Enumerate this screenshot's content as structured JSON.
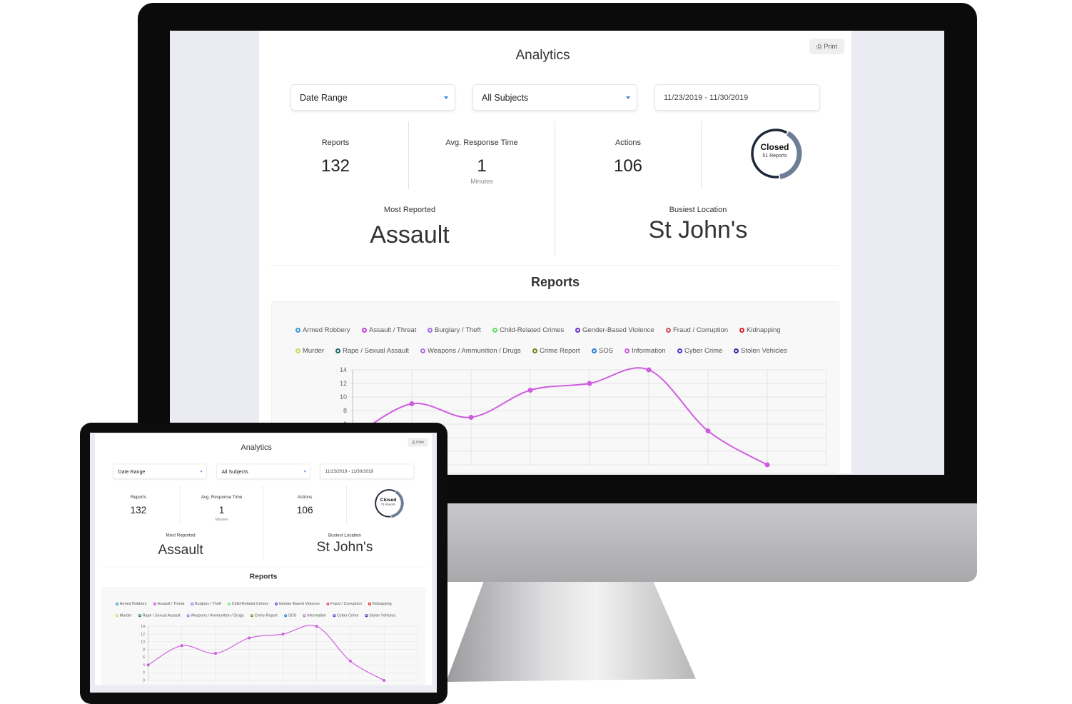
{
  "dashboard": {
    "title": "Analytics",
    "print_label": "Print",
    "print_icon": "printer-icon",
    "date_range_select": "Date Range",
    "subject_select": "All Subjects",
    "date_input": "11/23/2019 - 11/30/2019",
    "stats": {
      "reports_label": "Reports",
      "reports_value": "132",
      "response_label": "Avg. Response Time",
      "response_value": "1",
      "response_unit": "Minutes",
      "actions_label": "Actions",
      "actions_value": "106"
    },
    "donut": {
      "title": "Closed",
      "subtitle": "51 Reports",
      "closed": 51,
      "total": 132,
      "colors": {
        "ring": "#1e2838",
        "closed": "#6d7d96"
      }
    },
    "most_reported_label": "Most Reported",
    "most_reported_value": "Assault",
    "busiest_location_label": "Busiest Location",
    "busiest_location_value": "St John's",
    "reports_title": "Reports"
  },
  "chart_data": {
    "type": "line",
    "legend_placement": "top",
    "legend": [
      {
        "name": "Armed Robbery",
        "color": "#3a9ad9"
      },
      {
        "name": "Assault / Threat",
        "color": "#c63ee0"
      },
      {
        "name": "Burglary / Theft",
        "color": "#a36bea"
      },
      {
        "name": "Child-Related Crimes",
        "color": "#5fe060"
      },
      {
        "name": "Gender-Based Violence",
        "color": "#6a2fd0"
      },
      {
        "name": "Fraud / Corruption",
        "color": "#d04a60"
      },
      {
        "name": "Kidnapping",
        "color": "#e0202a"
      },
      {
        "name": "Murder",
        "color": "#c8e060"
      },
      {
        "name": "Rape / Sexual Assault",
        "color": "#1f6e70"
      },
      {
        "name": "Weapons / Ammunition / Drugs",
        "color": "#b070e0"
      },
      {
        "name": "Crime Report",
        "color": "#6a8a20"
      },
      {
        "name": "SOS",
        "color": "#2a80d8"
      },
      {
        "name": "Information",
        "color": "#d060e0"
      },
      {
        "name": "Cyber Crime",
        "color": "#5a38d0"
      },
      {
        "name": "Stolen Vehicles",
        "color": "#3030a0"
      }
    ],
    "series": [
      {
        "color": "#cf5ce0",
        "values": [
          4,
          9,
          7,
          11,
          12,
          14,
          5,
          0
        ]
      }
    ],
    "y_ticks": [
      "14",
      "12",
      "10",
      "8",
      "6",
      "4",
      "2",
      "0"
    ],
    "ylim": [
      0,
      14
    ],
    "grid": true
  }
}
